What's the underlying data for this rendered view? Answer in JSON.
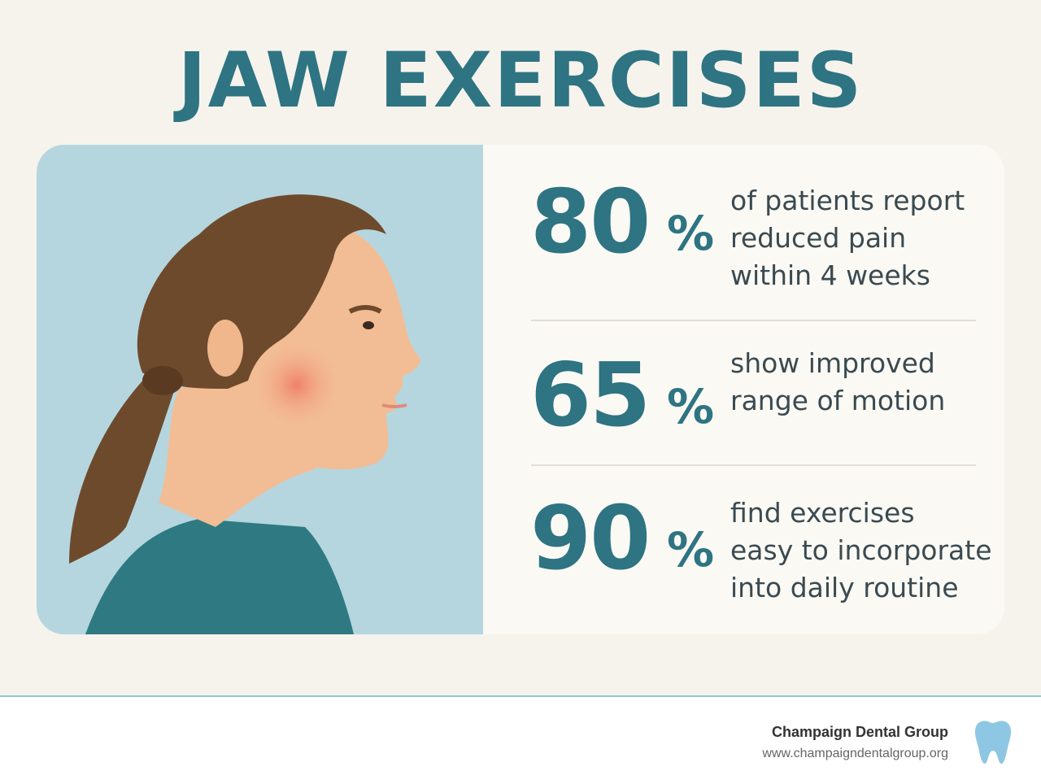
{
  "header": {
    "title": "JAW EXERCISES"
  },
  "stats": [
    {
      "figure": "80",
      "unit": "%",
      "lines": [
        "of patients report",
        "reduced pain",
        "within 4 weeks"
      ]
    },
    {
      "figure": "65",
      "unit": "%",
      "lines": [
        "show improved",
        "range of motion"
      ]
    },
    {
      "figure": "90",
      "unit": "%",
      "lines": [
        "find exercises",
        "easy to incorporate",
        "into daily routine"
      ]
    }
  ],
  "footer": {
    "name": "Champaign Dental Group",
    "url": "www.champaigndentalgroup.org"
  }
}
